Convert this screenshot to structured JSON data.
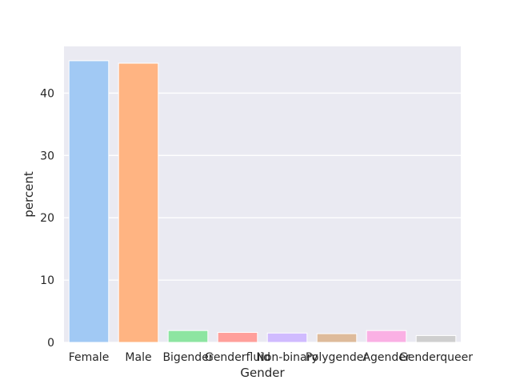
{
  "chart_data": {
    "type": "bar",
    "title": "",
    "xlabel": "Gender",
    "ylabel": "percent",
    "categories": [
      "Female",
      "Male",
      "Bigender",
      "Genderfluid",
      "Non-binary",
      "Polygender",
      "Agender",
      "Genderqueer"
    ],
    "values": [
      45.2,
      44.8,
      1.9,
      1.6,
      1.5,
      1.4,
      1.9,
      1.1
    ],
    "colors": [
      "#a1c9f4",
      "#ffb482",
      "#8de5a1",
      "#ff9f9b",
      "#d0bbff",
      "#debb9b",
      "#fab0e4",
      "#cfcfcf"
    ],
    "ylim": [
      0,
      47.5
    ],
    "yticks": [
      0,
      10,
      20,
      30,
      40
    ],
    "grid": true,
    "background": "#eaeaf2",
    "grid_color": "#ffffff"
  }
}
